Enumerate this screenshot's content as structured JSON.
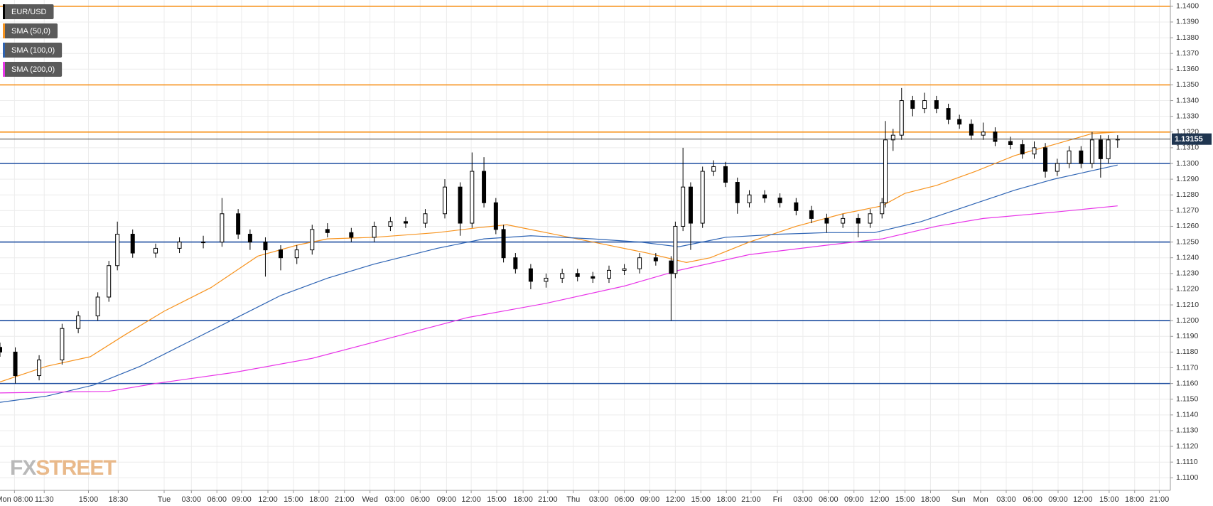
{
  "chart_data": {
    "type": "candlestick",
    "candles": {
      "name": "EUR/USD",
      "color": "#000000",
      "x": [
        0.0,
        1.8,
        4.6,
        7.3,
        9.2,
        11.5,
        12.8,
        13.8,
        15.6,
        18.3,
        21.1,
        23.9,
        26.1,
        28.0,
        29.4,
        31.2,
        33.0,
        34.9,
        36.7,
        38.5,
        41.3,
        44.0,
        45.9,
        47.7,
        50.0,
        52.3,
        54.1,
        55.5,
        56.9,
        58.3,
        59.2,
        60.6,
        62.4,
        64.2,
        66.1,
        67.9,
        69.7,
        71.6,
        73.4,
        75.2,
        77.1,
        78.9,
        79.4,
        80.3,
        81.2,
        82.6,
        83.9,
        85.3,
        86.7,
        88.1,
        89.9,
        91.7,
        93.6,
        95.4,
        97.2,
        99.1,
        100.9,
        102.3,
        103.7,
        104.1,
        105.0,
        106.0,
        107.3,
        108.7,
        110.1,
        111.5,
        112.8,
        114.2,
        115.6,
        117.0,
        118.8,
        120.2,
        121.6,
        122.9,
        124.3,
        125.7,
        127.1,
        128.4,
        129.4,
        130.3,
        131.4
      ],
      "open": [
        1.1183,
        1.118,
        1.1165,
        1.1175,
        1.1195,
        1.1203,
        1.1215,
        1.1235,
        1.1255,
        1.1243,
        1.1246,
        1.125,
        1.125,
        1.1268,
        1.1255,
        1.125,
        1.1245,
        1.124,
        1.1245,
        1.1258,
        1.1256,
        1.1253,
        1.126,
        1.1263,
        1.1262,
        1.1268,
        1.1285,
        1.1262,
        1.1295,
        1.1275,
        1.1258,
        1.124,
        1.1233,
        1.1225,
        1.1227,
        1.123,
        1.1228,
        1.1227,
        1.1232,
        1.1233,
        1.124,
        1.1238,
        1.123,
        1.126,
        1.1285,
        1.1262,
        1.1295,
        1.1298,
        1.1288,
        1.1275,
        1.128,
        1.1278,
        1.1275,
        1.127,
        1.1265,
        1.1262,
        1.1265,
        1.1262,
        1.1268,
        1.1275,
        1.1315,
        1.1318,
        1.134,
        1.1335,
        1.134,
        1.1335,
        1.1328,
        1.1325,
        1.1318,
        1.132,
        1.1314,
        1.1312,
        1.1306,
        1.131,
        1.1295,
        1.13,
        1.1308,
        1.13,
        1.1315,
        1.1303,
        1.1315
      ],
      "high": [
        1.1186,
        1.1183,
        1.1178,
        1.1198,
        1.1206,
        1.1218,
        1.1238,
        1.1263,
        1.1258,
        1.1249,
        1.1253,
        1.1254,
        1.1278,
        1.1271,
        1.1258,
        1.1253,
        1.1248,
        1.1248,
        1.1261,
        1.1262,
        1.1259,
        1.1263,
        1.1266,
        1.1266,
        1.1271,
        1.129,
        1.1288,
        1.1307,
        1.1304,
        1.1278,
        1.1261,
        1.1243,
        1.1236,
        1.123,
        1.1233,
        1.1233,
        1.1231,
        1.1235,
        1.1236,
        1.1243,
        1.1243,
        1.1241,
        1.1263,
        1.131,
        1.1288,
        1.1298,
        1.1302,
        1.1301,
        1.1291,
        1.1283,
        1.1283,
        1.1281,
        1.1278,
        1.1273,
        1.1268,
        1.1268,
        1.1268,
        1.1271,
        1.1278,
        1.1327,
        1.1322,
        1.1348,
        1.1343,
        1.1345,
        1.1343,
        1.1338,
        1.1331,
        1.1328,
        1.1326,
        1.1323,
        1.1317,
        1.1315,
        1.1314,
        1.1313,
        1.1303,
        1.1311,
        1.1311,
        1.132,
        1.1318,
        1.1318,
        1.1318
      ],
      "low": [
        1.1177,
        1.116,
        1.1162,
        1.1172,
        1.1192,
        1.12,
        1.1212,
        1.1232,
        1.124,
        1.124,
        1.1243,
        1.1246,
        1.1247,
        1.1252,
        1.1245,
        1.1228,
        1.1232,
        1.1236,
        1.1242,
        1.1253,
        1.125,
        1.125,
        1.1257,
        1.1259,
        1.1259,
        1.1265,
        1.1254,
        1.1259,
        1.1272,
        1.1255,
        1.1237,
        1.123,
        1.122,
        1.1221,
        1.1224,
        1.1225,
        1.1224,
        1.1224,
        1.1229,
        1.123,
        1.1235,
        1.12,
        1.1227,
        1.1257,
        1.1245,
        1.1259,
        1.1292,
        1.1285,
        1.1268,
        1.1272,
        1.1275,
        1.1272,
        1.1267,
        1.1262,
        1.1256,
        1.1259,
        1.1253,
        1.1259,
        1.1265,
        1.1272,
        1.1308,
        1.1315,
        1.133,
        1.1332,
        1.1332,
        1.1325,
        1.1322,
        1.1315,
        1.1315,
        1.1311,
        1.1309,
        1.1303,
        1.1303,
        1.1291,
        1.1292,
        1.1297,
        1.1297,
        1.1297,
        1.1291,
        1.13,
        1.131
      ],
      "close": [
        1.118,
        1.1165,
        1.1175,
        1.1195,
        1.1203,
        1.1215,
        1.1235,
        1.1255,
        1.1243,
        1.1246,
        1.125,
        1.125,
        1.1268,
        1.1255,
        1.125,
        1.1245,
        1.124,
        1.1245,
        1.1258,
        1.1256,
        1.1253,
        1.126,
        1.1263,
        1.1262,
        1.1268,
        1.1285,
        1.1262,
        1.1295,
        1.1275,
        1.1258,
        1.124,
        1.1233,
        1.1225,
        1.1227,
        1.123,
        1.1228,
        1.1227,
        1.1232,
        1.1233,
        1.124,
        1.1238,
        1.123,
        1.126,
        1.1285,
        1.1262,
        1.1295,
        1.1298,
        1.1288,
        1.1275,
        1.128,
        1.1278,
        1.1275,
        1.127,
        1.1265,
        1.1262,
        1.1265,
        1.1262,
        1.1268,
        1.1275,
        1.1315,
        1.1318,
        1.134,
        1.1335,
        1.134,
        1.1335,
        1.1328,
        1.1325,
        1.1318,
        1.132,
        1.1314,
        1.1312,
        1.1306,
        1.131,
        1.1295,
        1.13,
        1.1308,
        1.13,
        1.1315,
        1.1303,
        1.1315,
        1.13155
      ]
    },
    "series": [
      {
        "name": "SMA (50,0)",
        "color": "#f7931e",
        "x": [
          0,
          5.5,
          10.6,
          14.7,
          19.3,
          24.8,
          30.3,
          34.9,
          38.5,
          44.0,
          51.4,
          56.0,
          59.6,
          64.2,
          69.7,
          76.1,
          80.7,
          83.5,
          88.1,
          93.6,
          99.1,
          103.7,
          106.4,
          110.1,
          114.7,
          119.3,
          123.9,
          128.4,
          131.4
        ],
        "values": [
          1.1161,
          1.1171,
          1.1177,
          1.1191,
          1.1206,
          1.1221,
          1.1241,
          1.1248,
          1.1252,
          1.1253,
          1.1256,
          1.1259,
          1.1261,
          1.1256,
          1.125,
          1.1243,
          1.1237,
          1.124,
          1.125,
          1.126,
          1.1268,
          1.1273,
          1.1281,
          1.1286,
          1.1295,
          1.1305,
          1.1312,
          1.1319,
          1.132
        ]
      },
      {
        "name": "SMA (100,0)",
        "color": "#2e64b4",
        "x": [
          0,
          5.5,
          11.0,
          16.5,
          22.0,
          27.5,
          33.0,
          38.5,
          44.0,
          51.4,
          56.9,
          62.4,
          69.7,
          75.2,
          79.8,
          85.3,
          91.7,
          97.2,
          102.8,
          108.3,
          113.8,
          119.3,
          123.9,
          131.4
        ],
        "values": [
          1.1148,
          1.1152,
          1.1159,
          1.1171,
          1.1186,
          1.1201,
          1.1216,
          1.1227,
          1.1236,
          1.1246,
          1.1252,
          1.1254,
          1.1252,
          1.125,
          1.1247,
          1.1253,
          1.1255,
          1.1256,
          1.1256,
          1.1263,
          1.1273,
          1.1283,
          1.129,
          1.1299
        ]
      },
      {
        "name": "SMA (200,0)",
        "color": "#e834e8",
        "x": [
          0,
          12.8,
          18.3,
          27.5,
          36.7,
          45.9,
          55.0,
          64.2,
          73.4,
          79.8,
          88.1,
          97.2,
          103.7,
          110.1,
          115.6,
          123.9,
          131.4
        ],
        "values": [
          1.1154,
          1.1155,
          1.116,
          1.1167,
          1.1176,
          1.1189,
          1.1202,
          1.1211,
          1.1222,
          1.1232,
          1.1242,
          1.1248,
          1.1252,
          1.126,
          1.1265,
          1.1269,
          1.1273
        ]
      }
    ],
    "levels": [
      {
        "value": 1.14,
        "color": "#f7931e"
      },
      {
        "value": 1.135,
        "color": "#f7931e"
      },
      {
        "value": 1.132,
        "color": "#f7931e"
      },
      {
        "value": 1.13,
        "color": "#1f4fa0"
      },
      {
        "value": 1.125,
        "color": "#1f4fa0"
      },
      {
        "value": 1.12,
        "color": "#1f4fa0"
      },
      {
        "value": 1.116,
        "color": "#1f4fa0"
      }
    ],
    "last_price": 1.13155,
    "xlim": [
      0,
      137.6
    ],
    "ylim": [
      1.1092,
      1.1404
    ],
    "xticks": [
      {
        "value": 1.7,
        "label": "Mon 08:00"
      },
      {
        "value": 5.2,
        "label": "11:30"
      },
      {
        "value": 10.4,
        "label": "15:00"
      },
      {
        "value": 13.9,
        "label": "18:30"
      },
      {
        "value": 19.3,
        "label": "Tue"
      },
      {
        "value": 22.5,
        "label": "03:00"
      },
      {
        "value": 25.5,
        "label": "06:00"
      },
      {
        "value": 28.4,
        "label": "09:00"
      },
      {
        "value": 31.5,
        "label": "12:00"
      },
      {
        "value": 34.5,
        "label": "15:00"
      },
      {
        "value": 37.5,
        "label": "18:00"
      },
      {
        "value": 40.5,
        "label": "21:00"
      },
      {
        "value": 43.5,
        "label": "Wed"
      },
      {
        "value": 46.4,
        "label": "03:00"
      },
      {
        "value": 49.4,
        "label": "06:00"
      },
      {
        "value": 52.5,
        "label": "09:00"
      },
      {
        "value": 55.4,
        "label": "12:00"
      },
      {
        "value": 58.4,
        "label": "15:00"
      },
      {
        "value": 61.5,
        "label": "18:00"
      },
      {
        "value": 64.4,
        "label": "21:00"
      },
      {
        "value": 67.4,
        "label": "Thu"
      },
      {
        "value": 70.4,
        "label": "03:00"
      },
      {
        "value": 73.4,
        "label": "06:00"
      },
      {
        "value": 76.4,
        "label": "09:00"
      },
      {
        "value": 79.4,
        "label": "12:00"
      },
      {
        "value": 82.4,
        "label": "15:00"
      },
      {
        "value": 85.4,
        "label": "18:00"
      },
      {
        "value": 88.3,
        "label": "21:00"
      },
      {
        "value": 91.4,
        "label": "Fri"
      },
      {
        "value": 94.4,
        "label": "03:00"
      },
      {
        "value": 97.4,
        "label": "06:00"
      },
      {
        "value": 100.4,
        "label": "09:00"
      },
      {
        "value": 103.4,
        "label": "12:00"
      },
      {
        "value": 106.4,
        "label": "15:00"
      },
      {
        "value": 109.4,
        "label": "18:00"
      },
      {
        "value": 112.7,
        "label": "Sun"
      },
      {
        "value": 115.3,
        "label": "Mon"
      },
      {
        "value": 118.3,
        "label": "03:00"
      },
      {
        "value": 121.4,
        "label": "06:00"
      },
      {
        "value": 124.4,
        "label": "09:00"
      },
      {
        "value": 127.3,
        "label": "12:00"
      },
      {
        "value": 130.4,
        "label": "15:00"
      },
      {
        "value": 133.4,
        "label": "18:00"
      },
      {
        "value": 136.3,
        "label": "21:00"
      }
    ],
    "yticks": [
      {
        "value": 1.11,
        "label": "1.1100"
      },
      {
        "value": 1.111,
        "label": "1.1110"
      },
      {
        "value": 1.112,
        "label": "1.1120"
      },
      {
        "value": 1.113,
        "label": "1.1130"
      },
      {
        "value": 1.114,
        "label": "1.1140"
      },
      {
        "value": 1.115,
        "label": "1.1150"
      },
      {
        "value": 1.116,
        "label": "1.1160"
      },
      {
        "value": 1.117,
        "label": "1.1170"
      },
      {
        "value": 1.118,
        "label": "1.1180"
      },
      {
        "value": 1.119,
        "label": "1.1190"
      },
      {
        "value": 1.12,
        "label": "1.1200"
      },
      {
        "value": 1.121,
        "label": "1.1210"
      },
      {
        "value": 1.122,
        "label": "1.1220"
      },
      {
        "value": 1.123,
        "label": "1.1230"
      },
      {
        "value": 1.124,
        "label": "1.1240"
      },
      {
        "value": 1.125,
        "label": "1.1250"
      },
      {
        "value": 1.126,
        "label": "1.1260"
      },
      {
        "value": 1.127,
        "label": "1.1270"
      },
      {
        "value": 1.128,
        "label": "1.1280"
      },
      {
        "value": 1.129,
        "label": "1.1290"
      },
      {
        "value": 1.13,
        "label": "1.1300"
      },
      {
        "value": 1.131,
        "label": "1.1310"
      },
      {
        "value": 1.132,
        "label": "1.1320"
      },
      {
        "value": 1.133,
        "label": "1.1330"
      },
      {
        "value": 1.134,
        "label": "1.1340"
      },
      {
        "value": 1.135,
        "label": "1.1350"
      },
      {
        "value": 1.136,
        "label": "1.1360"
      },
      {
        "value": 1.137,
        "label": "1.1370"
      },
      {
        "value": 1.138,
        "label": "1.1380"
      },
      {
        "value": 1.139,
        "label": "1.1390"
      },
      {
        "value": 1.14,
        "label": "1.1400"
      }
    ],
    "grid": true,
    "watermark": [
      "FX",
      "STREET"
    ]
  }
}
